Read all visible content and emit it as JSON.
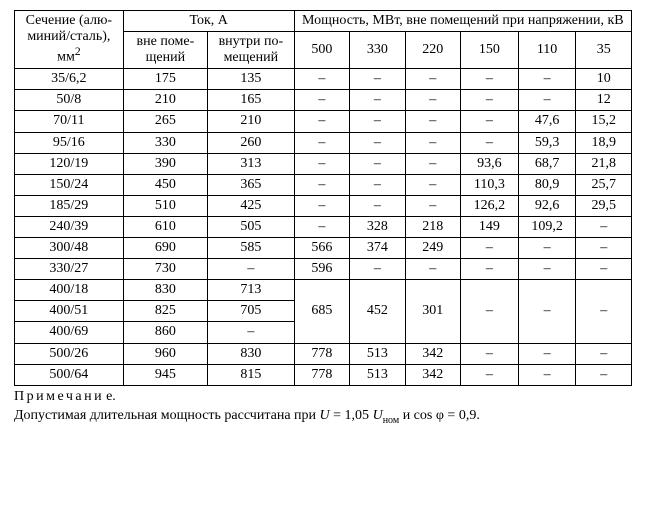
{
  "table": {
    "header": {
      "col_section": "Сечение (алю-миний/сталь), мм",
      "col_section_sup": "2",
      "col_current_group": "Ток, А",
      "col_power_group": "Мощность, МВт, вне помещений при напряжении, кВ",
      "col_current_out": "вне поме-щений",
      "col_current_in": "внутри по-мещений",
      "voltages": [
        "500",
        "330",
        "220",
        "150",
        "110",
        "35"
      ]
    },
    "rows": [
      {
        "section": "35/6,2",
        "out": "175",
        "in": "135",
        "p": [
          "–",
          "–",
          "–",
          "–",
          "–",
          "10"
        ]
      },
      {
        "section": "50/8",
        "out": "210",
        "in": "165",
        "p": [
          "–",
          "–",
          "–",
          "–",
          "–",
          "12"
        ]
      },
      {
        "section": "70/11",
        "out": "265",
        "in": "210",
        "p": [
          "–",
          "–",
          "–",
          "–",
          "47,6",
          "15,2"
        ]
      },
      {
        "section": "95/16",
        "out": "330",
        "in": "260",
        "p": [
          "–",
          "–",
          "–",
          "–",
          "59,3",
          "18,9"
        ]
      },
      {
        "section": "120/19",
        "out": "390",
        "in": "313",
        "p": [
          "–",
          "–",
          "–",
          "93,6",
          "68,7",
          "21,8"
        ]
      },
      {
        "section": "150/24",
        "out": "450",
        "in": "365",
        "p": [
          "–",
          "–",
          "–",
          "110,3",
          "80,9",
          "25,7"
        ]
      },
      {
        "section": "185/29",
        "out": "510",
        "in": "425",
        "p": [
          "–",
          "–",
          "–",
          "126,2",
          "92,6",
          "29,5"
        ]
      },
      {
        "section": "240/39",
        "out": "610",
        "in": "505",
        "p": [
          "–",
          "328",
          "218",
          "149",
          "109,2",
          "–"
        ]
      },
      {
        "section": "300/48",
        "out": "690",
        "in": "585",
        "p": [
          "566",
          "374",
          "249",
          "–",
          "–",
          "–"
        ]
      },
      {
        "section": "330/27",
        "out": "730",
        "in": "–",
        "p": [
          "596",
          "–",
          "–",
          "–",
          "–",
          "–"
        ]
      }
    ],
    "merged_group": {
      "rows": [
        {
          "section": "400/18",
          "out": "830",
          "in": "713"
        },
        {
          "section": "400/51",
          "out": "825",
          "in": "705"
        },
        {
          "section": "400/69",
          "out": "860",
          "in": "–"
        }
      ],
      "p": [
        "685",
        "452",
        "301",
        "–",
        "–",
        "–"
      ]
    },
    "tail_rows": [
      {
        "section": "500/26",
        "out": "960",
        "in": "830",
        "p": [
          "778",
          "513",
          "342",
          "–",
          "–",
          "–"
        ]
      },
      {
        "section": "500/64",
        "out": "945",
        "in": "815",
        "p": [
          "778",
          "513",
          "342",
          "–",
          "–",
          "–"
        ]
      }
    ]
  },
  "note": {
    "line1_spaced": "Примечани",
    "line1_tail": "е.",
    "line2_a": "Допустимая длительная мощность рассчитана при ",
    "line2_U": "U",
    "line2_b": " = 1,05 ",
    "line2_Unom_U": "U",
    "line2_Unom_sub": "ном",
    "line2_c": " и cos φ = 0,9."
  }
}
